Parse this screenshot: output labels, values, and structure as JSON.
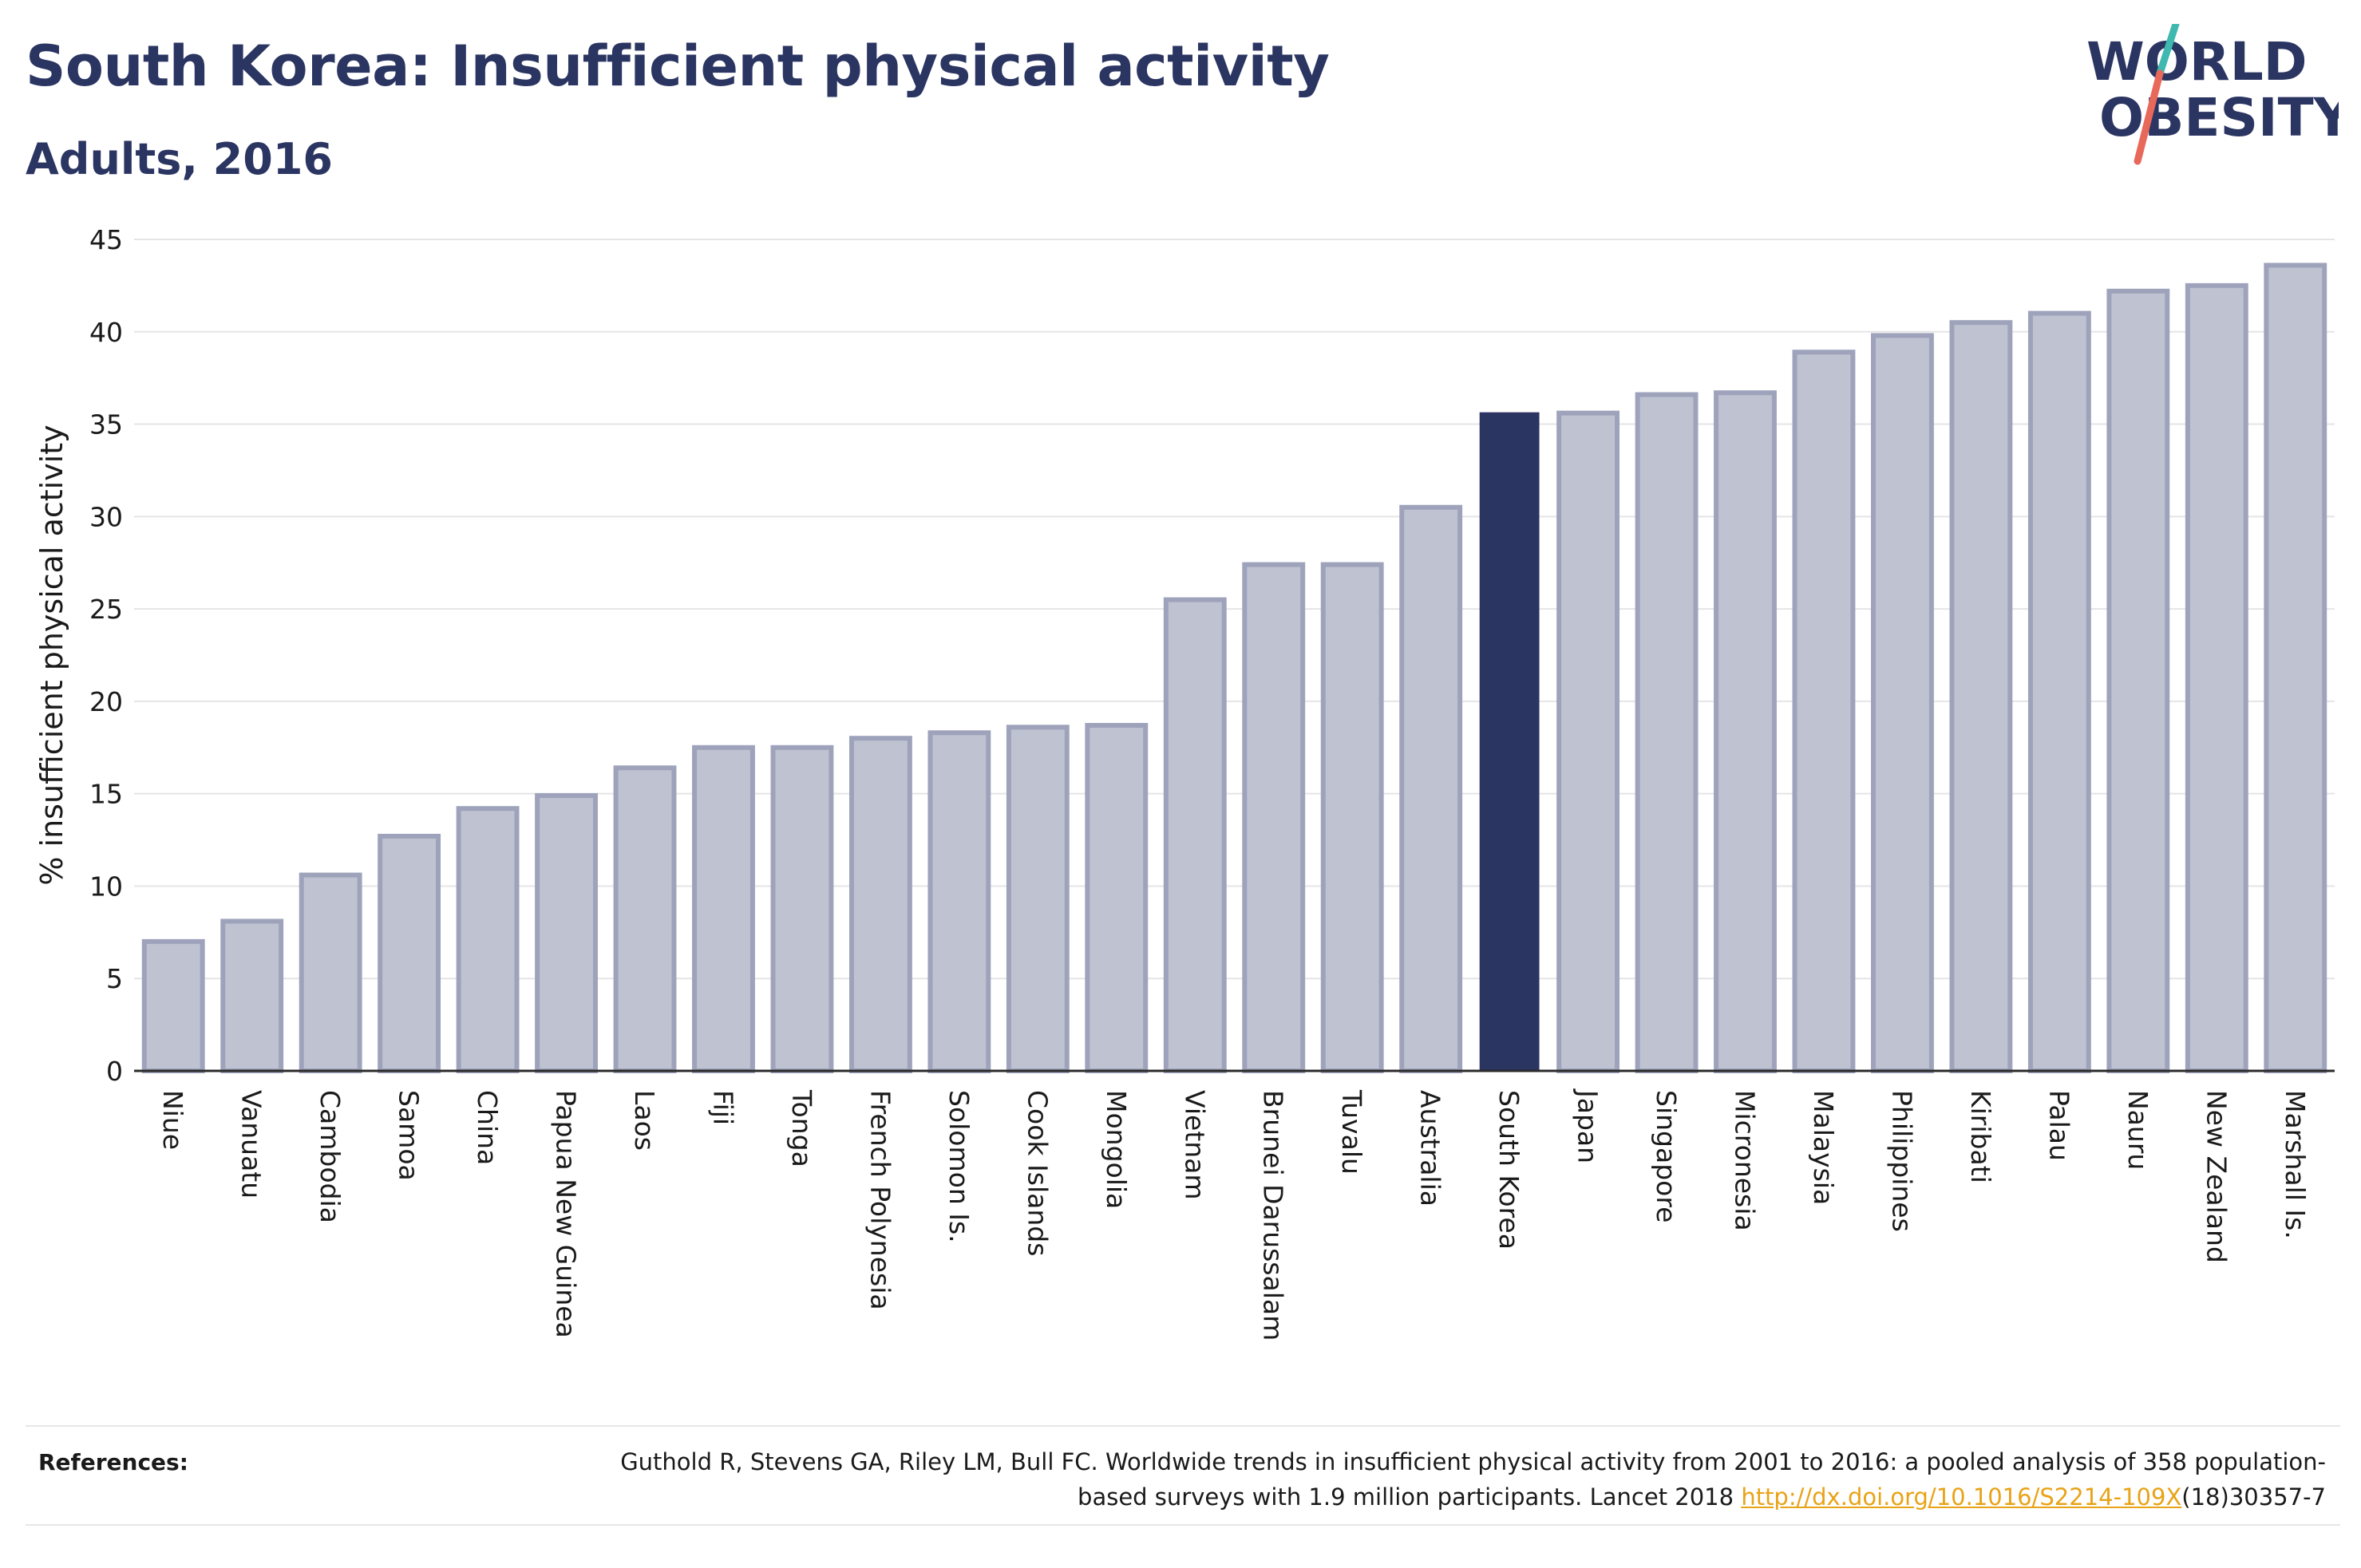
{
  "header": {
    "title": "South Korea: Insufficient physical activity",
    "subtitle": "Adults, 2016"
  },
  "logo": {
    "line1": "WORLD",
    "line2": "OBESITY",
    "colors": {
      "text": "#2b3562",
      "slash_top": "#3fb8af",
      "slash_bottom": "#e8685a"
    }
  },
  "colors": {
    "highlight": "#2b3562",
    "bar_fill": "#bfc2d0",
    "bar_edge": "#9ea3bb",
    "grid": "#e5e5e5",
    "link": "#e8a317"
  },
  "chart_data": {
    "type": "bar",
    "ylabel": "% insufficient physical activity",
    "xlabel": "",
    "ylim": [
      0,
      45
    ],
    "yticks": [
      0,
      5,
      10,
      15,
      20,
      25,
      30,
      35,
      40,
      45
    ],
    "grid": true,
    "highlight": "South Korea",
    "categories": [
      "Niue",
      "Vanuatu",
      "Cambodia",
      "Samoa",
      "China",
      "Papua New Guinea",
      "Laos",
      "Fiji",
      "Tonga",
      "French Polynesia",
      "Solomon Is.",
      "Cook Islands",
      "Mongolia",
      "Vietnam",
      "Brunei Darussalam",
      "Tuvalu",
      "Australia",
      "South Korea",
      "Japan",
      "Singapore",
      "Micronesia",
      "Malaysia",
      "Philippines",
      "Kiribati",
      "Palau",
      "Nauru",
      "New Zealand",
      "Marshall Is."
    ],
    "values": [
      7.0,
      8.1,
      10.6,
      12.7,
      14.2,
      14.9,
      16.4,
      17.5,
      17.5,
      18.0,
      18.3,
      18.6,
      18.7,
      25.5,
      27.4,
      27.4,
      30.5,
      35.6,
      35.6,
      36.6,
      36.7,
      38.9,
      39.8,
      40.5,
      41.0,
      42.2,
      42.5,
      43.6
    ]
  },
  "references": {
    "label": "References:",
    "text_before": "Guthold R, Stevens GA, Riley LM, Bull FC. Worldwide trends in insufficient physical activity from 2001 to 2016: a pooled analysis of 358 population-based surveys with 1.9 million participants. Lancet 2018 ",
    "link": "http://dx.doi.org/10.1016/S2214-109X",
    "text_after": "(18)30357-7"
  }
}
